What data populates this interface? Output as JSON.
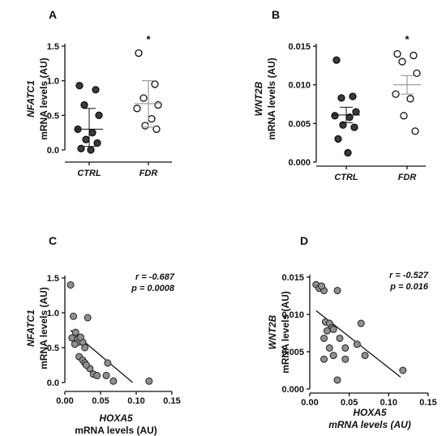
{
  "chart_data": [
    {
      "panel": "A",
      "type": "scatter",
      "ylabel_gene": "NFATC1",
      "ylabel_rest": "mRNA levels (AU)",
      "categories": [
        "CTRL",
        "FDR"
      ],
      "yticks": [
        "0.0",
        "0.5",
        "1.0",
        "1.5"
      ],
      "ylim": [
        0,
        1.5
      ],
      "groups": [
        {
          "name": "CTRL",
          "color": "#3a3a3a",
          "values": [
            0.93,
            0.87,
            0.65,
            0.5,
            0.3,
            0.25,
            0.15,
            0.1,
            0.02,
            0.0
          ],
          "mean": 0.3,
          "err_low": 0.05,
          "err_high": 0.6
        },
        {
          "name": "FDR",
          "color": "#ffffff",
          "values": [
            1.4,
            0.95,
            0.75,
            0.65,
            0.6,
            0.45,
            0.35,
            0.3
          ],
          "mean": 0.67,
          "err_low": 0.33,
          "err_high": 1.0
        }
      ],
      "significance": "*"
    },
    {
      "panel": "B",
      "type": "scatter",
      "ylabel_gene": "WNT2B",
      "ylabel_rest": "mRNA levels (AU)",
      "categories": [
        "CTRL",
        "FDR"
      ],
      "yticks": [
        "0.000",
        "0.005",
        "0.010",
        "0.015"
      ],
      "ylim": [
        0,
        0.015
      ],
      "groups": [
        {
          "name": "CTRL",
          "color": "#3a3a3a",
          "values": [
            0.0132,
            0.0085,
            0.0083,
            0.0065,
            0.006,
            0.0058,
            0.0048,
            0.0045,
            0.003,
            0.0012
          ],
          "mean": 0.0061,
          "err_low": 0.0051,
          "err_high": 0.0071
        },
        {
          "name": "FDR",
          "color": "#ffffff",
          "values": [
            0.014,
            0.0138,
            0.013,
            0.0115,
            0.0088,
            0.0082,
            0.006,
            0.004
          ],
          "mean": 0.01,
          "err_low": 0.0088,
          "err_high": 0.0112
        },
        {
          "name": "",
          "color": "",
          "values": []
        }
      ],
      "significance": "*"
    },
    {
      "panel": "C",
      "type": "scatter",
      "ylabel_gene": "NFATC1",
      "ylabel_rest": "mRNA levels (AU)",
      "xlabel_gene": "HOXA5",
      "xlabel_rest": "mRNA levels (AU)",
      "xticks": [
        "0.00",
        "0.05",
        "0.10",
        "0.15"
      ],
      "yticks": [
        "0.0",
        "0.5",
        "1.0",
        "1.5"
      ],
      "xlim": [
        0,
        0.15
      ],
      "ylim": [
        0,
        1.5
      ],
      "points": [
        [
          0.008,
          1.4
        ],
        [
          0.012,
          0.95
        ],
        [
          0.015,
          0.72
        ],
        [
          0.01,
          0.64
        ],
        [
          0.018,
          0.62
        ],
        [
          0.02,
          0.58
        ],
        [
          0.014,
          0.55
        ],
        [
          0.025,
          0.58
        ],
        [
          0.022,
          0.65
        ],
        [
          0.028,
          0.5
        ],
        [
          0.032,
          0.93
        ],
        [
          0.02,
          0.37
        ],
        [
          0.025,
          0.32
        ],
        [
          0.028,
          0.28
        ],
        [
          0.035,
          0.2
        ],
        [
          0.03,
          0.25
        ],
        [
          0.04,
          0.12
        ],
        [
          0.045,
          0.1
        ],
        [
          0.058,
          0.1
        ],
        [
          0.06,
          0.28
        ],
        [
          0.068,
          0.02
        ],
        [
          0.118,
          0.02
        ]
      ],
      "regression": [
        [
          0.008,
          0.75
        ],
        [
          0.095,
          0.0
        ]
      ],
      "r": "r = -0.687",
      "p": "p = 0.0008"
    },
    {
      "panel": "D",
      "type": "scatter",
      "ylabel_gene": "WNT2B",
      "ylabel_rest": "mRNA levels (AU)",
      "xlabel_gene": "HOXA5",
      "xlabel_rest": "mRNA levels (AU)",
      "xticks": [
        "0.00",
        "0.05",
        "0.10",
        "0.15"
      ],
      "yticks": [
        "0.000",
        "0.005",
        "0.010",
        "0.015"
      ],
      "xlim": [
        0,
        0.15
      ],
      "ylim": [
        0,
        0.015
      ],
      "points": [
        [
          0.008,
          0.014
        ],
        [
          0.012,
          0.0135
        ],
        [
          0.018,
          0.0132
        ],
        [
          0.015,
          0.0138
        ],
        [
          0.035,
          0.0132
        ],
        [
          0.02,
          0.009
        ],
        [
          0.025,
          0.0088
        ],
        [
          0.028,
          0.0082
        ],
        [
          0.03,
          0.008
        ],
        [
          0.022,
          0.0078
        ],
        [
          0.018,
          0.0068
        ],
        [
          0.038,
          0.0068
        ],
        [
          0.025,
          0.0055
        ],
        [
          0.045,
          0.0055
        ],
        [
          0.06,
          0.006
        ],
        [
          0.065,
          0.0088
        ],
        [
          0.018,
          0.004
        ],
        [
          0.03,
          0.0045
        ],
        [
          0.045,
          0.004
        ],
        [
          0.07,
          0.0045
        ],
        [
          0.035,
          0.0012
        ],
        [
          0.118,
          0.0025
        ]
      ],
      "regression": [
        [
          0.008,
          0.0105
        ],
        [
          0.115,
          0.0016
        ]
      ],
      "r": "r = -0.527",
      "p": "p = 0.016"
    }
  ]
}
